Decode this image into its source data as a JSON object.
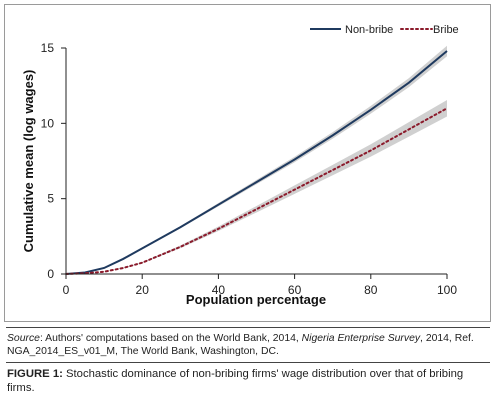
{
  "chart_data": {
    "type": "line",
    "xlabel": "Population percentage",
    "ylabel": "Cumulative mean (log wages)",
    "xlim": [
      0,
      100
    ],
    "ylim": [
      0,
      15
    ],
    "xticks": [
      "0",
      "20",
      "40",
      "60",
      "80",
      "100"
    ],
    "yticks": [
      "0",
      "5",
      "10",
      "15"
    ],
    "grid": false,
    "legend_position": "top-right",
    "series": [
      {
        "name": "Non-bribe",
        "style": "solid",
        "color": "#1f3a5f",
        "x": [
          0,
          5,
          10,
          15,
          20,
          30,
          40,
          50,
          60,
          70,
          80,
          90,
          100
        ],
        "y": [
          0,
          0.1,
          0.4,
          1.0,
          1.7,
          3.1,
          4.6,
          6.1,
          7.6,
          9.2,
          10.9,
          12.7,
          14.8
        ],
        "band": 0.35
      },
      {
        "name": "Bribe",
        "style": "dotted",
        "color": "#8b1a2b",
        "x": [
          0,
          5,
          10,
          15,
          20,
          30,
          40,
          50,
          60,
          70,
          80,
          90,
          100
        ],
        "y": [
          0,
          0.05,
          0.15,
          0.4,
          0.75,
          1.8,
          3.0,
          4.3,
          5.6,
          6.9,
          8.2,
          9.6,
          11.0
        ],
        "band": 0.55
      }
    ]
  },
  "source": {
    "label": "Source",
    "text_1": ": Authors' computations based on the World Bank, 2014, ",
    "title": "Nigeria Enterprise Survey",
    "text_2": ", 2014, Ref. NGA_2014_ES_v01_M, The World Bank, Washington, DC."
  },
  "caption": {
    "label": "FIGURE 1:",
    "text": " Stochastic dominance of non-bribing firms' wage distribution over that of bribing firms."
  }
}
